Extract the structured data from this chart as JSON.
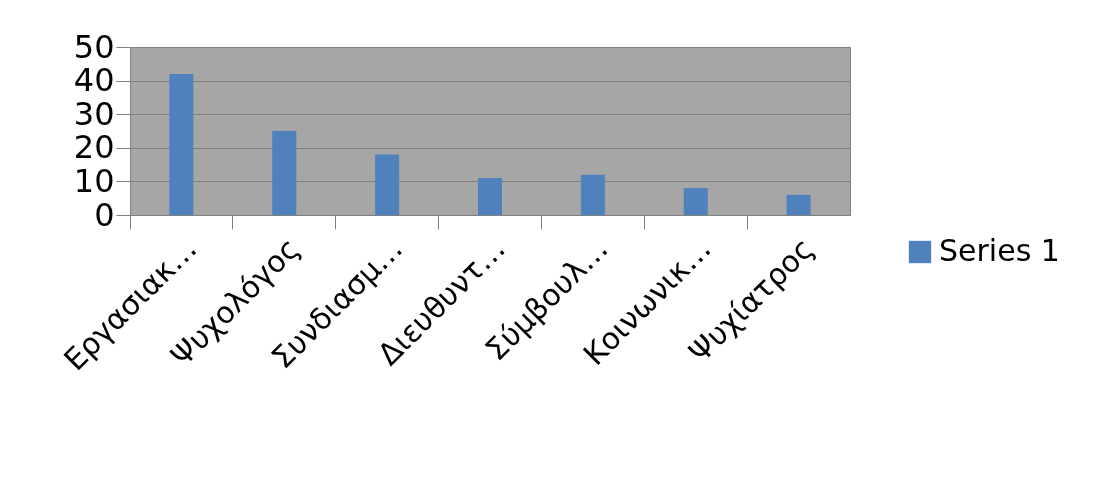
{
  "chart_data": {
    "type": "bar",
    "categories": [
      "Εργασιακ…",
      "Ψυχολόγος",
      "Συνδιασμ…",
      "Διευθυντ…",
      "Σύμβουλ…",
      "Κοινωνικ…",
      "Ψυχίατρος"
    ],
    "series": [
      {
        "name": "Series 1",
        "color": "#4f81bd",
        "values": [
          42,
          25,
          18,
          11,
          12,
          8,
          6
        ]
      }
    ],
    "ylim": [
      0,
      50
    ],
    "yticks": [
      0,
      10,
      20,
      30,
      40,
      50
    ],
    "grid": "y",
    "legend": "right"
  }
}
